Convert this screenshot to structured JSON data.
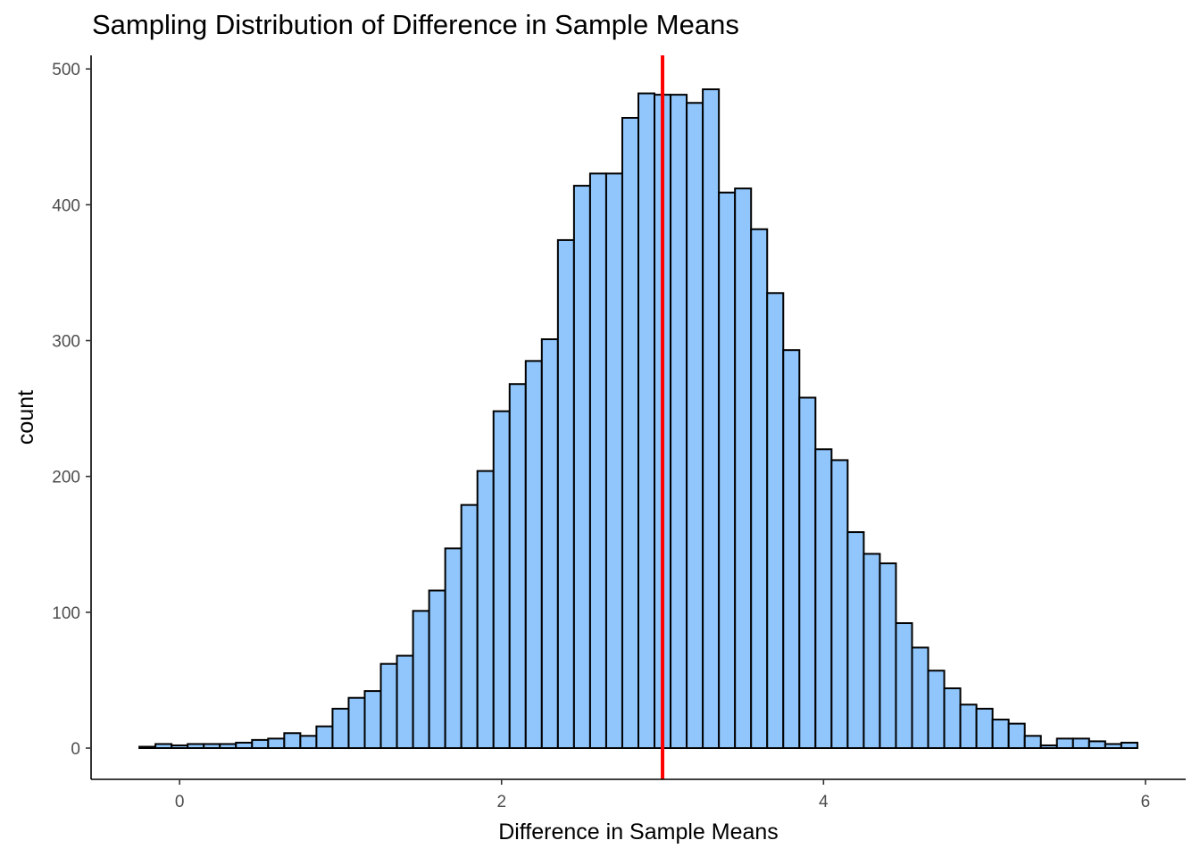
{
  "chart_data": {
    "type": "bar",
    "title": "Sampling Distribution of Difference in Sample Means",
    "xlabel": "Difference in Sample Means",
    "ylabel": "count",
    "xlim": [
      -0.55,
      6.25
    ],
    "ylim": [
      -23,
      510
    ],
    "xticks": [
      0,
      2,
      4,
      6
    ],
    "yticks": [
      0,
      100,
      200,
      300,
      400,
      500
    ],
    "bin_width": 0.1,
    "bin_start": -0.25,
    "values": [
      1,
      3,
      2,
      3,
      3,
      3,
      4,
      6,
      7,
      11,
      9,
      16,
      29,
      37,
      42,
      62,
      68,
      101,
      116,
      147,
      179,
      204,
      248,
      268,
      285,
      301,
      374,
      414,
      423,
      423,
      464,
      482,
      481,
      481,
      475,
      485,
      409,
      412,
      382,
      335,
      293,
      258,
      220,
      212,
      159,
      143,
      136,
      92,
      74,
      57,
      44,
      32,
      29,
      21,
      18,
      9,
      2,
      7,
      7,
      5,
      3,
      4
    ],
    "reference_line": {
      "x": 3.0,
      "color": "#ff0000"
    },
    "bar_fill": "#90c6fc",
    "bar_stroke": "#000000",
    "grid": false,
    "legend": "none"
  }
}
